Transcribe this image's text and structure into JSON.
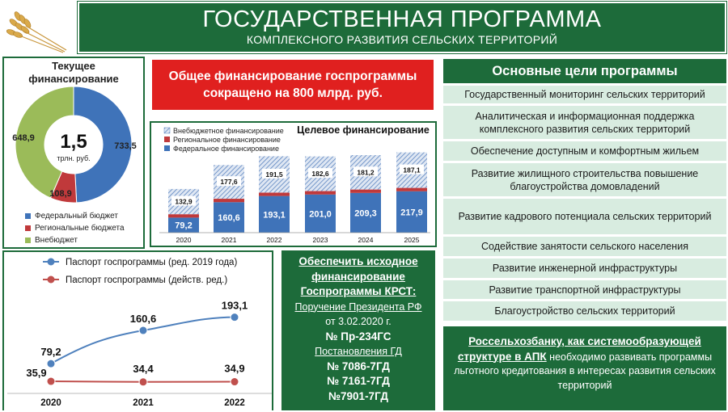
{
  "header": {
    "title": "ГОСУДАРСТВЕННАЯ ПРОГРАММА",
    "subtitle": "КОМПЛЕКСНОГО РАЗВИТИЯ СЕЛЬСКИХ ТЕРРИТОРИЙ"
  },
  "colors": {
    "green": "#1d6b3a",
    "light_green": "#d8ece0",
    "red": "#e0201f",
    "blue": "#3f73b9",
    "dark_red": "#c0393b",
    "olive": "#9bbb59"
  },
  "donut": {
    "title_line1": "Текущее",
    "title_line2": "финансирование",
    "center_value": "1,5",
    "center_unit": "трлн. руб.",
    "legend": [
      "Федеральный бюджет",
      "Региональные бюджета",
      "Внебюджет"
    ]
  },
  "banner": {
    "line1": "Общее финансирование госпрограммы",
    "line2": "сокращено на 800 млрд. руб."
  },
  "chart_data": [
    {
      "type": "pie",
      "title": "Текущее финансирование",
      "categories": [
        "Федеральный бюджет",
        "Региональные бюджета",
        "Внебюджет"
      ],
      "values": [
        733.5,
        108.9,
        648.9
      ],
      "labels": [
        "733,5",
        "108,9",
        "648,9"
      ],
      "center_label": "1,5",
      "center_unit": "трлн. руб.",
      "colors": [
        "#3f73b9",
        "#c0393b",
        "#9bbb59"
      ]
    },
    {
      "type": "bar",
      "stacked": true,
      "title": "Целевое финансирование",
      "categories": [
        "2020",
        "2021",
        "2022",
        "2023",
        "2024",
        "2025"
      ],
      "series": [
        {
          "name": "Федеральное финансирование",
          "values": [
            79.2,
            160.6,
            193.1,
            201.0,
            209.3,
            217.9
          ],
          "labels": [
            "79,2",
            "160,6",
            "193,1",
            "201,0",
            "209,3",
            "217,9"
          ]
        },
        {
          "name": "Региональное финансирование",
          "values": [
            18,
            18,
            18,
            18,
            18,
            18
          ],
          "labels": [
            "",
            "",
            "",
            "",
            "",
            ""
          ]
        },
        {
          "name": "Внебюджетное финансирование",
          "values": [
            132.9,
            177.6,
            191.5,
            182.6,
            181.2,
            187.1
          ],
          "labels": [
            "132,9",
            "177,6",
            "191,5",
            "182,6",
            "181,2",
            "187,1"
          ]
        }
      ],
      "legend": "top-left"
    },
    {
      "type": "line",
      "categories": [
        "2020",
        "2021",
        "2022"
      ],
      "series": [
        {
          "name": "Паспорт госпрограммы (ред. 2019 года)",
          "values": [
            79.2,
            160.6,
            193.1
          ],
          "labels": [
            "79,2",
            "160,6",
            "193,1"
          ]
        },
        {
          "name": "Паспорт госпрограммы (действ. ред.)",
          "values": [
            35.9,
            34.4,
            34.9
          ],
          "labels": [
            "35,9",
            "34,4",
            "34,9"
          ]
        }
      ],
      "legend": "top-left"
    }
  ],
  "middle": {
    "l1": "Обеспечить исходное",
    "l2": "финансирование",
    "l3": "Госпрограммы КРСТ:",
    "l4": "Поручение Президента РФ",
    "l5": "от 3.02.2020 г.",
    "l6": "№ Пр-234ГС",
    "l7": "Постановления ГД",
    "l8": "№ 7086-7ГД",
    "l9": "№ 7161-7ГД",
    "l10": "№7901-7ГД"
  },
  "goals": {
    "title": "Основные цели программы",
    "items": [
      "Государственный мониторинг сельских территорий",
      "Аналитическая и информационная поддержка комплексного развития сельских территорий",
      "Обеспечение доступным и комфортным жильем",
      "Развитие жилищного строительства повышение благоустройства домовладений",
      "Развитие кадрового потенциала сельских территорий",
      "Содействие занятости сельского населения",
      "Развитие инженерной инфраструктуры",
      "Развитие транспортной инфраструктуры",
      "Благоустройство сельских территорий"
    ]
  },
  "rshb": {
    "bold": "Россельхозбанку, как системообразующей структуре в АПК",
    "rest": " необходимо развивать программы льготного кредитования в интересах развития сельских территорий"
  }
}
